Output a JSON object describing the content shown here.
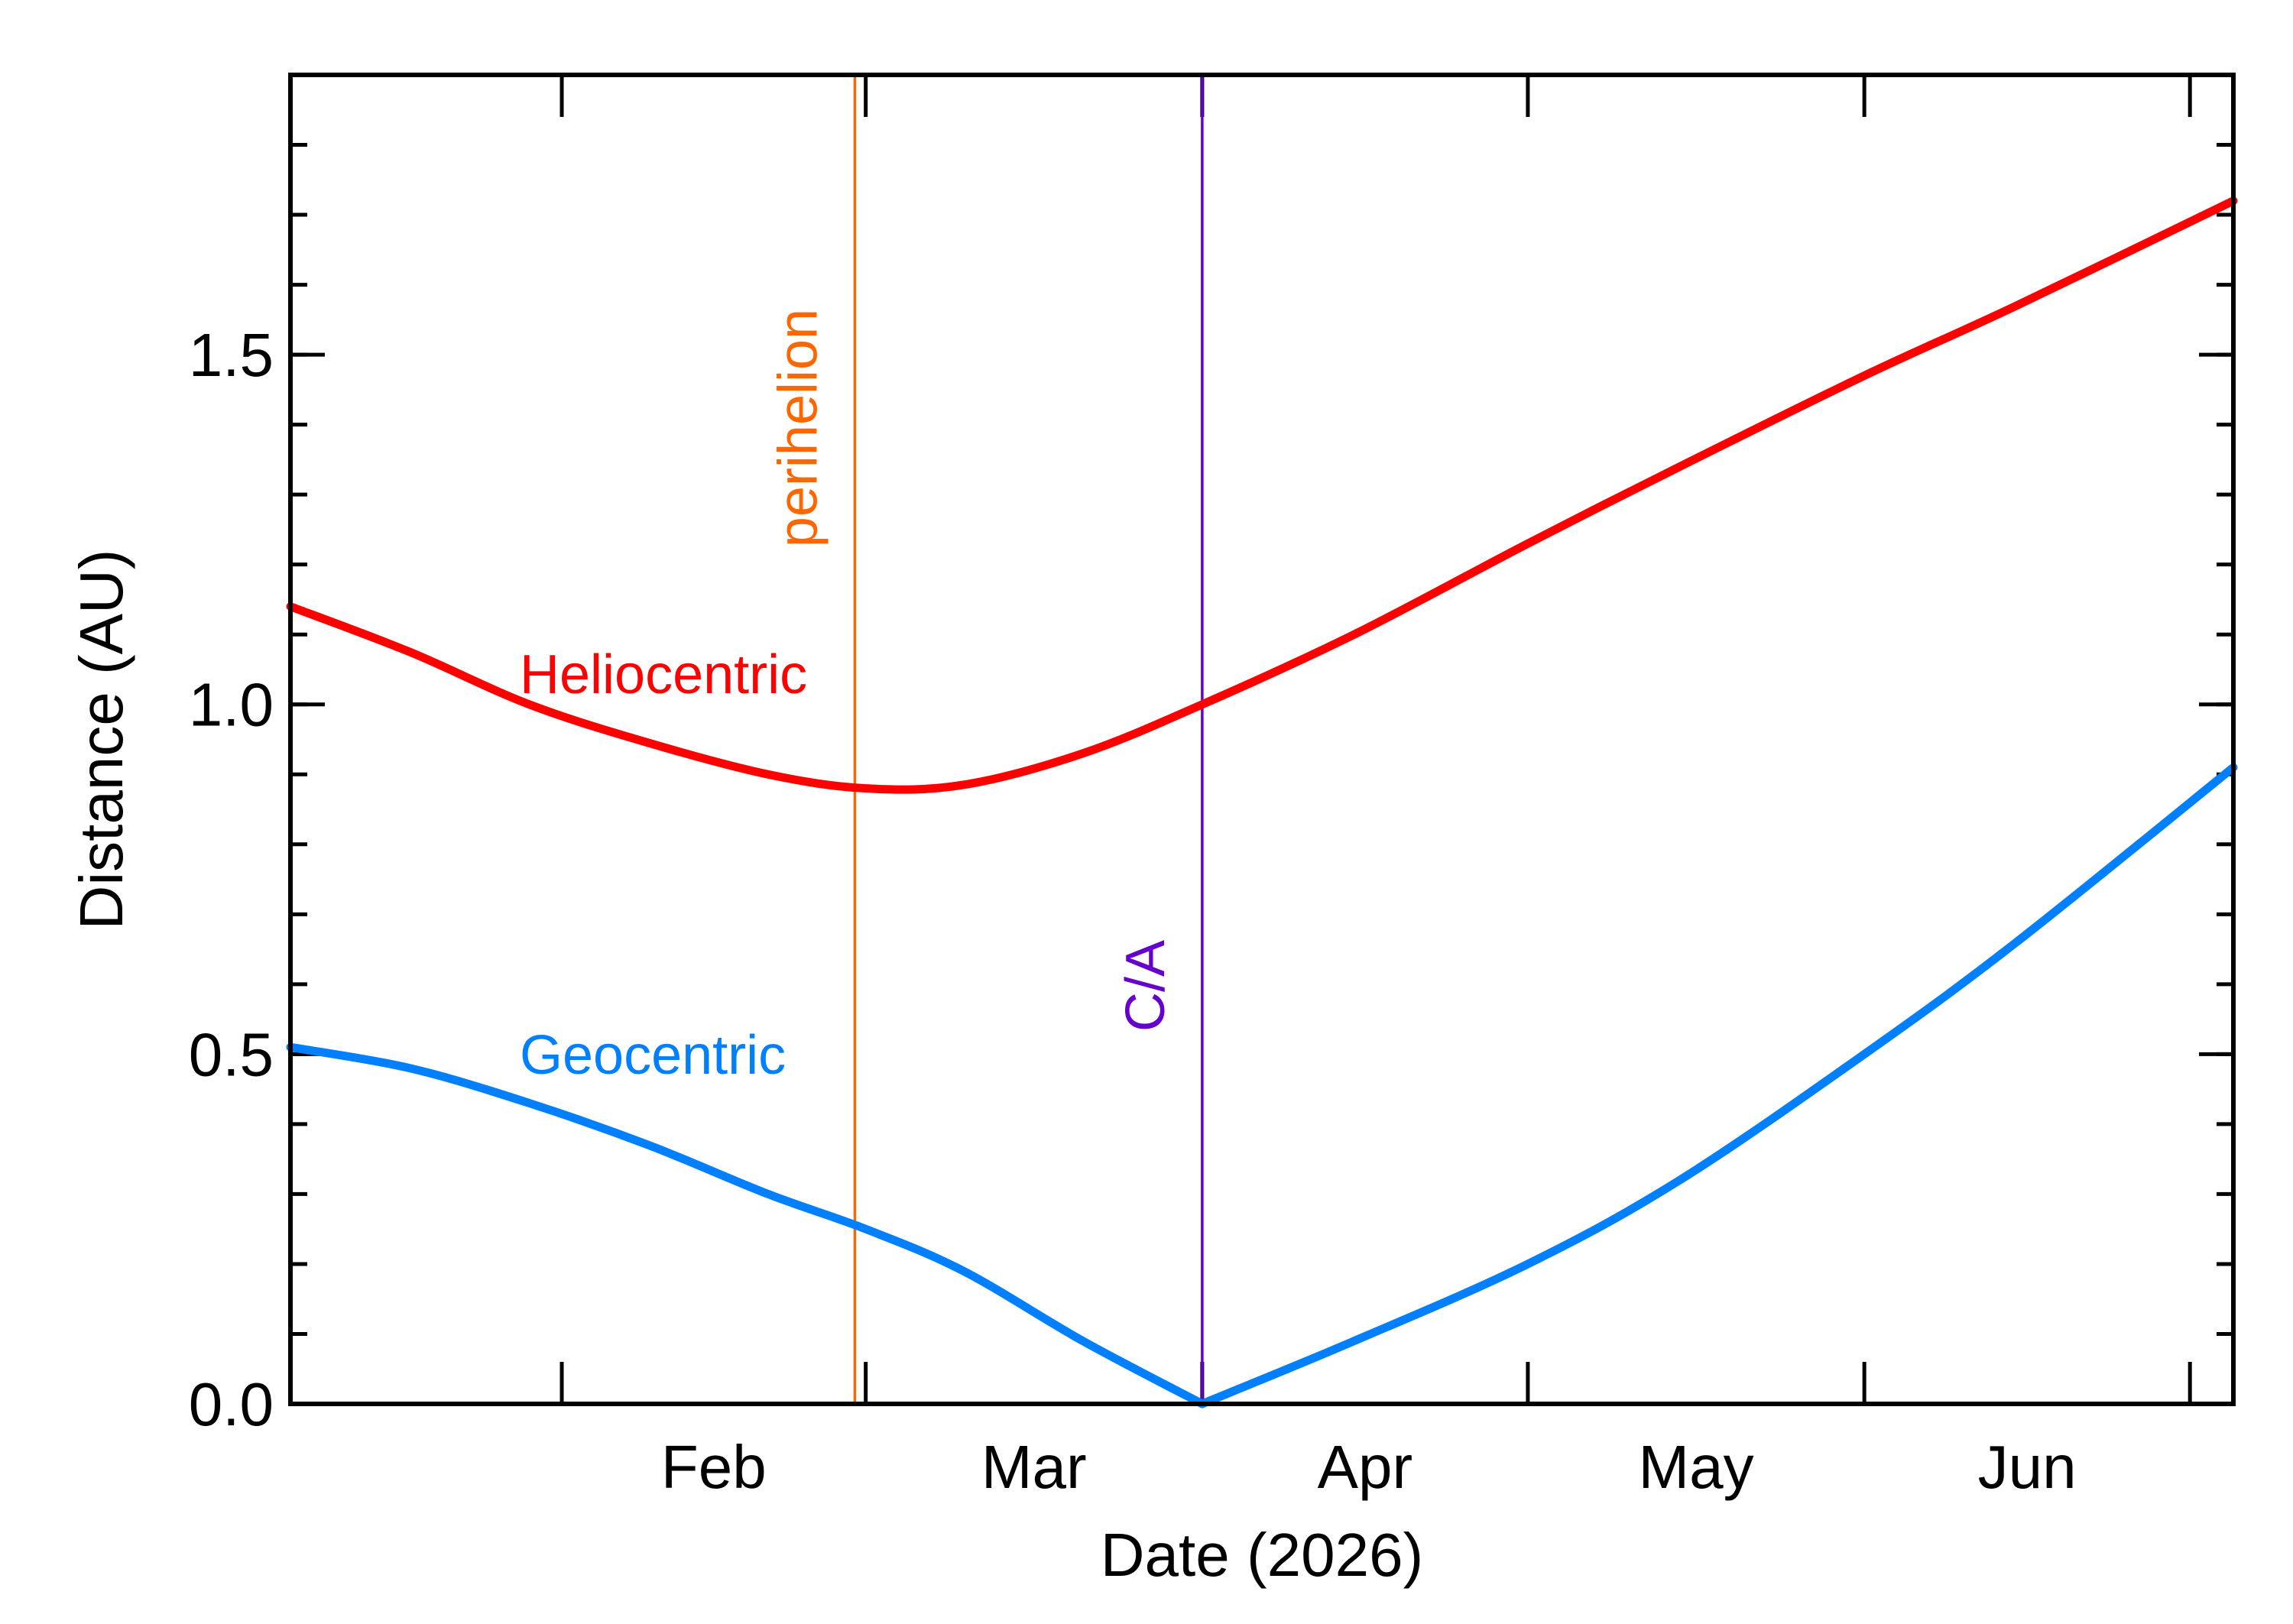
{
  "chart_data": {
    "type": "line",
    "title": "",
    "xlabel": "Date (2026)",
    "ylabel": "Distance (AU)",
    "xlim": [
      "2026-01-07",
      "2026-07-05"
    ],
    "ylim": [
      0.0,
      1.9
    ],
    "x_ticks": [
      {
        "label": "Feb",
        "date": "2026-02-01"
      },
      {
        "label": "Mar",
        "date": "2026-03-01"
      },
      {
        "label": "Apr",
        "date": "2026-04-01"
      },
      {
        "label": "May",
        "date": "2026-05-01"
      },
      {
        "label": "Jun",
        "date": "2026-06-01"
      }
    ],
    "y_ticks": [
      {
        "label": "0.0",
        "value": 0.0
      },
      {
        "label": "0.5",
        "value": 0.5
      },
      {
        "label": "1.0",
        "value": 1.0
      },
      {
        "label": "1.5",
        "value": 1.5
      }
    ],
    "y_minor_step": 0.1,
    "series": [
      {
        "name": "Heliocentric",
        "color": "#ff0000",
        "points": [
          [
            "2026-01-07",
            1.14
          ],
          [
            "2026-01-18",
            1.075
          ],
          [
            "2026-01-29",
            1.0
          ],
          [
            "2026-02-09",
            0.945
          ],
          [
            "2026-02-20",
            0.9
          ],
          [
            "2026-03-01",
            0.88
          ],
          [
            "2026-03-10",
            0.885
          ],
          [
            "2026-03-21",
            0.93
          ],
          [
            "2026-04-01",
            1.0
          ],
          [
            "2026-04-15",
            1.1
          ],
          [
            "2026-05-01",
            1.23
          ],
          [
            "2026-05-15",
            1.34
          ],
          [
            "2026-06-01",
            1.47
          ],
          [
            "2026-06-15",
            1.57
          ],
          [
            "2026-07-05",
            1.72
          ]
        ]
      },
      {
        "name": "Geocentric",
        "color": "#0080ff",
        "points": [
          [
            "2026-01-07",
            0.51
          ],
          [
            "2026-01-18",
            0.48
          ],
          [
            "2026-01-29",
            0.43
          ],
          [
            "2026-02-09",
            0.37
          ],
          [
            "2026-02-20",
            0.3
          ],
          [
            "2026-03-01",
            0.25
          ],
          [
            "2026-03-10",
            0.19
          ],
          [
            "2026-03-21",
            0.09
          ],
          [
            "2026-04-01",
            0.0
          ],
          [
            "2026-04-15",
            0.09
          ],
          [
            "2026-05-01",
            0.2
          ],
          [
            "2026-05-15",
            0.32
          ],
          [
            "2026-06-01",
            0.5
          ],
          [
            "2026-06-15",
            0.66
          ],
          [
            "2026-07-05",
            0.91
          ]
        ]
      }
    ],
    "markers": [
      {
        "label": "perihelion",
        "date": "2026-02-28",
        "color": "#ff6600"
      },
      {
        "label": "C/A",
        "date": "2026-04-01",
        "color": "#6600cc"
      }
    ],
    "grid": false,
    "legend": "inline labels"
  }
}
